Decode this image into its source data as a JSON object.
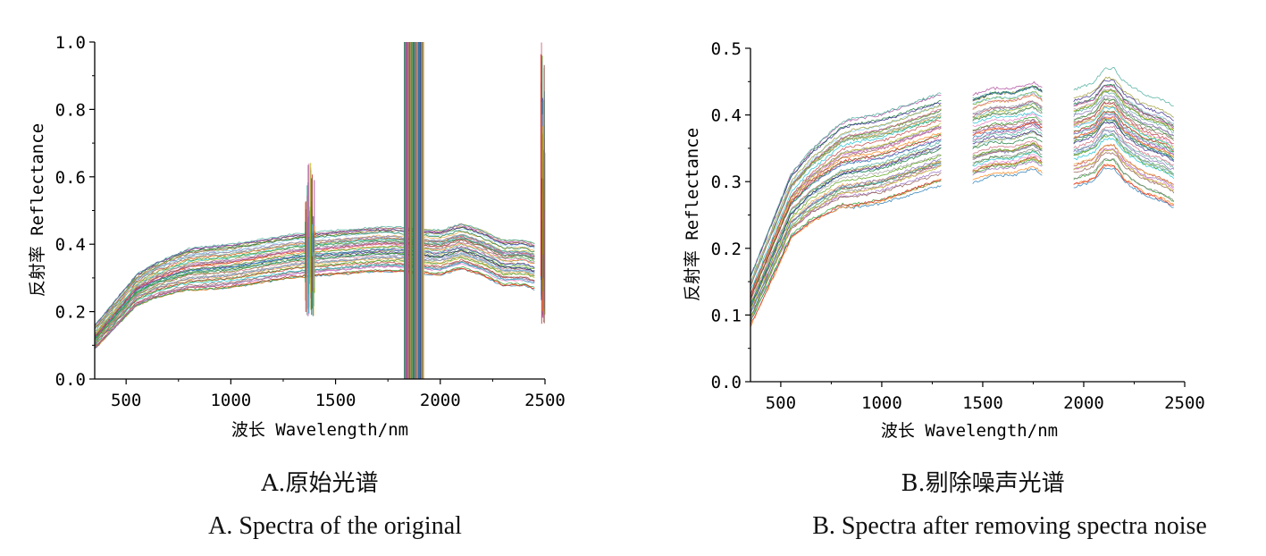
{
  "chart_data": [
    {
      "type": "line",
      "panel": "A",
      "title": "",
      "xlabel": "波长 Wavelength/nm",
      "ylabel": "反射率 Reflectance",
      "xlim": [
        350,
        2500
      ],
      "ylim": [
        0,
        1.0
      ],
      "x_ticks": [
        500,
        1000,
        1500,
        2000,
        2500
      ],
      "y_ticks": [
        "0.0",
        "0.2",
        "0.4",
        "0.6",
        "0.8",
        "1.0"
      ],
      "grid": false,
      "legend": "none",
      "series_count_approx": 60,
      "representative_mean_curve": {
        "x": [
          350,
          450,
          550,
          650,
          800,
          1000,
          1200,
          1300,
          1500,
          1700,
          1800,
          2000,
          2100,
          2200,
          2300,
          2400,
          2450
        ],
        "y": [
          0.12,
          0.19,
          0.26,
          0.29,
          0.32,
          0.33,
          0.35,
          0.36,
          0.37,
          0.38,
          0.38,
          0.37,
          0.39,
          0.37,
          0.34,
          0.34,
          0.33
        ]
      },
      "envelope": {
        "upper_offset": 0.07,
        "lower_offset": -0.06
      },
      "noise_regions": [
        {
          "start": 1355,
          "end": 1400,
          "ymin": 0.18,
          "ymax": 0.66
        },
        {
          "start": 1830,
          "end": 1920,
          "ymin": 0.0,
          "ymax": 1.0
        },
        {
          "start": 2480,
          "end": 2500,
          "ymin": 0.16,
          "ymax": 1.0
        }
      ]
    },
    {
      "type": "line",
      "panel": "B",
      "title": "",
      "xlabel": "波长 Wavelength/nm",
      "ylabel": "反射率 Reflectance",
      "xlim": [
        350,
        2500
      ],
      "ylim": [
        0,
        0.5
      ],
      "x_ticks": [
        500,
        1000,
        1500,
        2000,
        2500
      ],
      "y_ticks": [
        "0.0",
        "0.1",
        "0.2",
        "0.3",
        "0.4",
        "0.5"
      ],
      "grid": false,
      "legend": "none",
      "series_count_approx": 60,
      "segments": [
        {
          "x": [
            350,
            450,
            550,
            650,
            800,
            1000,
            1200,
            1300
          ],
          "y": [
            0.12,
            0.19,
            0.26,
            0.29,
            0.32,
            0.33,
            0.35,
            0.36
          ]
        },
        {
          "x": [
            1450,
            1550,
            1650,
            1750,
            1800
          ],
          "y": [
            0.36,
            0.37,
            0.37,
            0.38,
            0.37
          ]
        },
        {
          "x": [
            1950,
            2050,
            2100,
            2150,
            2200,
            2300,
            2400,
            2450
          ],
          "y": [
            0.36,
            0.37,
            0.39,
            0.39,
            0.37,
            0.35,
            0.34,
            0.33
          ]
        }
      ],
      "envelope": {
        "upper_offset": 0.07,
        "lower_offset": -0.06
      }
    }
  ],
  "captions": {
    "a_cn": "A.原始光谱",
    "a_en": "A. Spectra of the original",
    "b_cn": "B.剔除噪声光谱",
    "b_en": "B. Spectra after removing spectra noise"
  },
  "line_colors": [
    "#1f77b4",
    "#ff7f0e",
    "#2ca02c",
    "#d62728",
    "#9467bd",
    "#8c564b",
    "#e377c2",
    "#7f7f7f",
    "#bcbd22",
    "#17becf",
    "#3a923a",
    "#c03d3e",
    "#5ba8a0",
    "#e8a33d",
    "#7b6bb3",
    "#a0a0a0",
    "#4e9a06",
    "#cc6677",
    "#88ccee",
    "#999933",
    "#117733",
    "#332288",
    "#aa4499",
    "#44aa99"
  ]
}
